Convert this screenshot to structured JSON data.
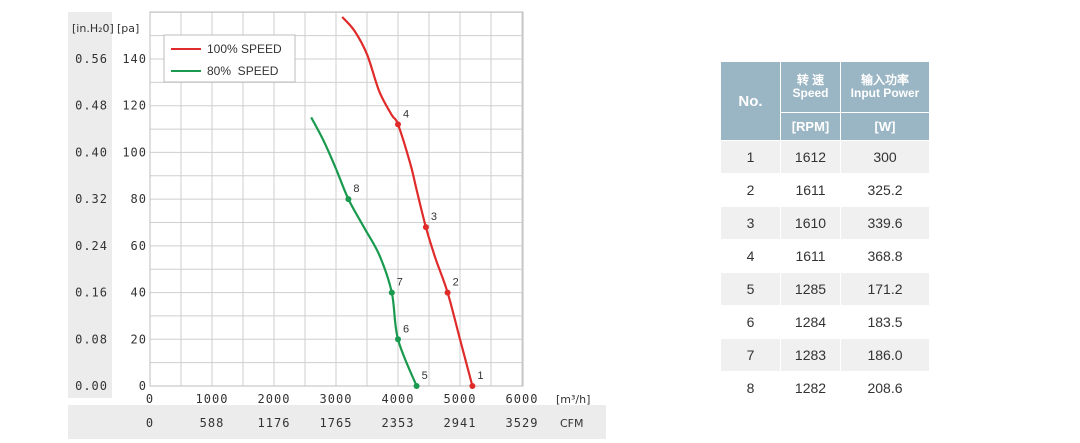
{
  "chart_data": {
    "type": "line",
    "y_axis_label_inh2o": "[in.H₂0]",
    "y_axis_label_pa": "[pa]",
    "x_axis_unit_m3h": "[m³/h]",
    "x_axis_unit_cfm": "CFM",
    "xlim": [
      0,
      6000
    ],
    "ylim": [
      0,
      160
    ],
    "grid": true,
    "legend_position": "top-left",
    "x_ticks_m3h": [
      "0",
      "1000",
      "2000",
      "3000",
      "4000",
      "5000",
      "6000"
    ],
    "x_ticks_cfm": [
      "0",
      "588",
      "1176",
      "1765",
      "2353",
      "2941",
      "3529"
    ],
    "y_ticks_pa": [
      "0",
      "20",
      "40",
      "60",
      "80",
      "100",
      "120",
      "140"
    ],
    "y_ticks_inh2o": [
      "0.00",
      "0.08",
      "0.16",
      "0.24",
      "0.32",
      "0.40",
      "0.48",
      "0.56"
    ],
    "series": [
      {
        "name": "100% SPEED",
        "color": "#e02b2b",
        "curve": [
          [
            3100,
            158
          ],
          [
            3300,
            152
          ],
          [
            3500,
            142
          ],
          [
            3700,
            126
          ],
          [
            3900,
            116
          ],
          [
            4000,
            112
          ],
          [
            4200,
            95
          ],
          [
            4300,
            84
          ],
          [
            4450,
            68
          ],
          [
            4600,
            55
          ],
          [
            4800,
            40
          ],
          [
            5000,
            20
          ],
          [
            5200,
            0
          ]
        ],
        "points": [
          {
            "label": "1",
            "x": 5200,
            "y": 0
          },
          {
            "label": "2",
            "x": 4800,
            "y": 40
          },
          {
            "label": "3",
            "x": 4450,
            "y": 68
          },
          {
            "label": "4",
            "x": 4000,
            "y": 112
          }
        ]
      },
      {
        "name": "80%  SPEED",
        "color": "#1a9a4f",
        "curve": [
          [
            2600,
            115
          ],
          [
            2800,
            105
          ],
          [
            3000,
            93
          ],
          [
            3200,
            80
          ],
          [
            3450,
            68
          ],
          [
            3700,
            56
          ],
          [
            3900,
            40
          ],
          [
            4000,
            20
          ],
          [
            4300,
            0
          ]
        ],
        "points": [
          {
            "label": "5",
            "x": 4300,
            "y": 0
          },
          {
            "label": "6",
            "x": 4000,
            "y": 20
          },
          {
            "label": "7",
            "x": 3900,
            "y": 40
          },
          {
            "label": "8",
            "x": 3200,
            "y": 80
          }
        ]
      }
    ]
  },
  "table": {
    "header_no": "No.",
    "header_speed_cn": "转 速",
    "header_speed_en": "Speed",
    "header_power_cn": "输入功率",
    "header_power_en": "Input Power",
    "unit_speed": "[RPM]",
    "unit_power": "[W]",
    "rows": [
      {
        "no": "1",
        "speed": "1612",
        "power": "300"
      },
      {
        "no": "2",
        "speed": "1611",
        "power": "325.2"
      },
      {
        "no": "3",
        "speed": "1610",
        "power": "339.6"
      },
      {
        "no": "4",
        "speed": "1611",
        "power": "368.8"
      },
      {
        "no": "5",
        "speed": "1285",
        "power": "171.2"
      },
      {
        "no": "6",
        "speed": "1284",
        "power": "183.5"
      },
      {
        "no": "7",
        "speed": "1283",
        "power": "186.0"
      },
      {
        "no": "8",
        "speed": "1282",
        "power": "208.6"
      }
    ]
  }
}
